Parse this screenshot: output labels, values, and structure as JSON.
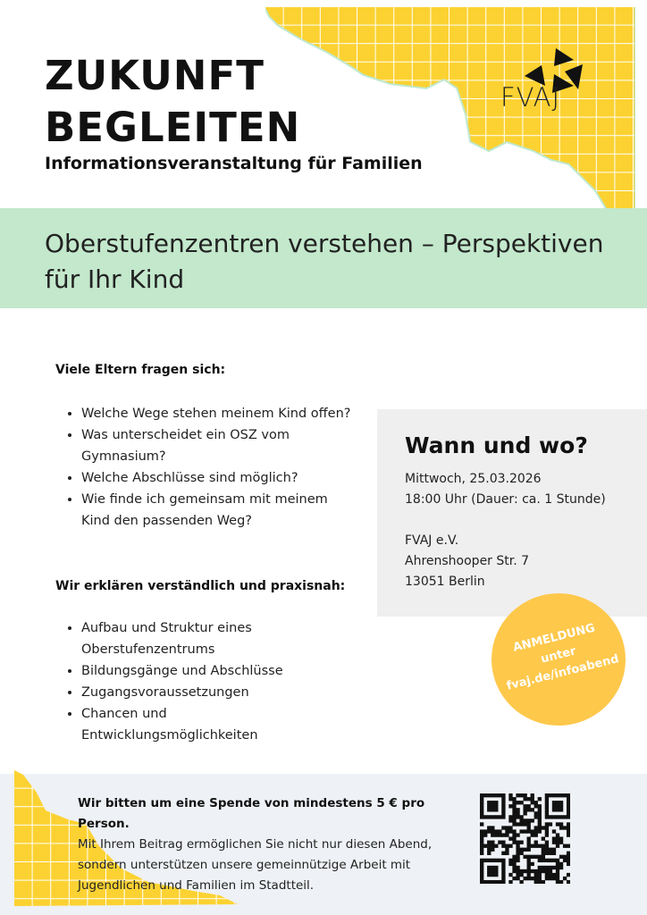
{
  "header": {
    "title_line1": "ZUKUNFT",
    "title_line2": "BEGLEITEN",
    "subtitle": "Informationsveranstaltung für Familien",
    "logo_text": "FVAJ"
  },
  "banner": {
    "text": "Oberstufenzentren verstehen – Perspektiven für Ihr Kind"
  },
  "questions": {
    "heading": "Viele Eltern fragen sich:",
    "items": [
      "Welche Wege stehen meinem Kind offen?",
      "Was unterscheidet ein OSZ vom Gymnasium?",
      "Welche Abschlüsse sind möglich?",
      "Wie finde ich gemeinsam mit meinem Kind den passenden Weg?"
    ]
  },
  "explain": {
    "heading": "Wir erklären verständlich und praxisnah:",
    "items": [
      "Aufbau und Struktur eines Oberstufenzentrums",
      "Bildungsgänge und Abschlüsse",
      "Zugangsvoraussetzungen",
      "Chancen und Entwicklungsmöglichkeiten"
    ]
  },
  "info": {
    "heading": "Wann und wo?",
    "date": "Mittwoch, 25.03.2026",
    "time": "18:00 Uhr (Dauer: ca. 1 Stunde)",
    "org": "FVAJ e.V.",
    "street": "Ahrenshooper Str. 7",
    "city": "13051 Berlin"
  },
  "registration": {
    "line1": "ANMELDUNG",
    "line2": "unter",
    "line3": "fvaj.de/infoabend"
  },
  "donation": {
    "bold": "Wir bitten um eine Spende von mindestens 5 € pro Person.",
    "text": "Mit Ihrem Beitrag ermöglichen Sie nicht nur diesen Abend, sondern unterstützen unsere gemeinnützige Arbeit mit Jugendlichen und Familien im Stadtteil."
  },
  "colors": {
    "yellow": "#fcd232",
    "green": "#c3e8cc",
    "orange": "#fec84b",
    "gray": "#efefef",
    "footer": "#eef1f5"
  }
}
